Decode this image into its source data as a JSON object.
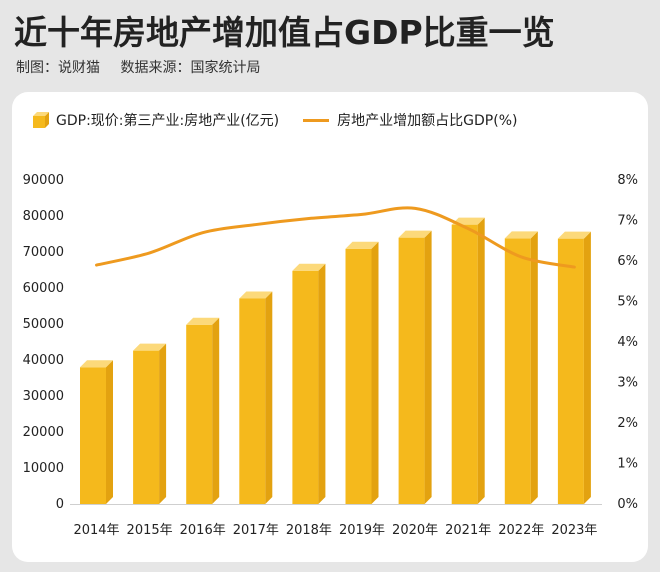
{
  "header": {
    "title": "近十年房地产增加值占GDP比重一览",
    "maker": "制图：说财猫",
    "source": "数据来源：国家统计局"
  },
  "colors": {
    "bar_front": "#f5b91c",
    "bar_side": "#e3a210",
    "bar_top": "#fcd97a",
    "line": "#ee9a1f"
  },
  "chart_data": {
    "type": "bar",
    "categories": [
      "2014年",
      "2015年",
      "2016年",
      "2017年",
      "2018年",
      "2019年",
      "2020年",
      "2021年",
      "2022年",
      "2023年"
    ],
    "series": [
      {
        "name": "GDP:现价:第三产业:房地产业(亿元)",
        "type": "bar",
        "axis": "left",
        "values": [
          38000,
          42600,
          49800,
          57100,
          64800,
          70900,
          74000,
          77600,
          73800,
          73700
        ]
      },
      {
        "name": "房地产业增加额占比GDP(%)",
        "type": "line",
        "axis": "right",
        "values": [
          5.9,
          6.2,
          6.7,
          6.9,
          7.05,
          7.15,
          7.3,
          6.8,
          6.1,
          5.85
        ]
      }
    ],
    "y_left": {
      "range": [
        0,
        90000
      ],
      "ticks": [
        "0",
        "10000",
        "20000",
        "30000",
        "40000",
        "50000",
        "60000",
        "70000",
        "80000",
        "90000"
      ]
    },
    "y_right": {
      "range": [
        0,
        8
      ],
      "ticks": [
        "0%",
        "1%",
        "2%",
        "3%",
        "4%",
        "5%",
        "6%",
        "7%",
        "8%"
      ]
    },
    "grid": false,
    "legend_position": "top-left"
  }
}
